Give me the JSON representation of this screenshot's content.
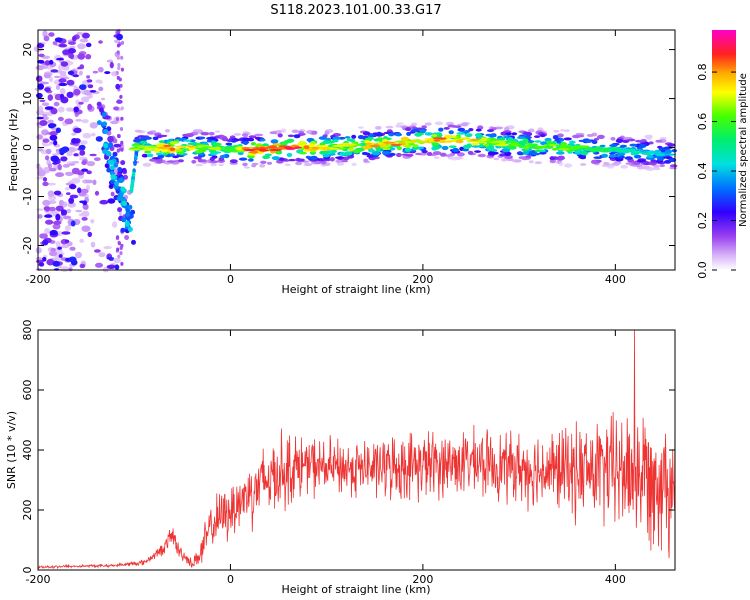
{
  "title": "S118.2023.101.00.33.G17",
  "chart_data": [
    {
      "type": "heatmap",
      "name": "spectrogram",
      "xlabel": "Height of straight line (km)",
      "ylabel": "Frequency (Hz)",
      "xlim": [
        -200,
        462
      ],
      "ylim": [
        -25,
        24
      ],
      "xticks": [
        -200,
        0,
        200,
        400
      ],
      "yticks": [
        -20,
        -10,
        0,
        10,
        20
      ],
      "colorbar": {
        "label": "Normalized spectral amplitude",
        "range": [
          0,
          0.97
        ],
        "ticks": [
          0.0,
          0.2,
          0.4,
          0.6,
          0.8
        ],
        "tick_labels": [
          "0.0",
          "0.2",
          "0.4",
          "0.6",
          "0.8"
        ]
      },
      "ridge": {
        "x": [
          -100,
          -60,
          -20,
          0,
          20,
          60,
          100,
          150,
          200,
          250,
          300,
          350,
          400,
          462
        ],
        "freq": [
          0,
          0,
          0,
          -0.5,
          -0.5,
          0,
          0,
          0.5,
          1.5,
          1.5,
          0.5,
          0,
          -0.5,
          -1.5
        ],
        "peak_amplitude": [
          0.7,
          0.9,
          0.75,
          0.6,
          0.95,
          0.97,
          0.8,
          0.85,
          0.9,
          0.85,
          0.7,
          0.7,
          0.55,
          0.45
        ]
      },
      "descending_branch": {
        "x": [
          -135,
          -125,
          -118,
          -112,
          -108,
          -104
        ],
        "freq": [
          6,
          -2,
          -6,
          -10,
          -14,
          -17
        ]
      },
      "noise_region_x": [
        -200,
        -115
      ]
    },
    {
      "type": "line",
      "name": "snr",
      "xlabel": "Height of straight line (km)",
      "ylabel": "SNR (10 * v/v)",
      "xlim": [
        -200,
        462
      ],
      "ylim": [
        0,
        800
      ],
      "xticks": [
        -200,
        0,
        200,
        400
      ],
      "yticks": [
        0,
        200,
        400,
        600,
        800
      ],
      "color": "#ee3333",
      "envelope": {
        "x": [
          -200,
          -120,
          -90,
          -70,
          -60,
          -55,
          -40,
          -30,
          -20,
          0,
          20,
          50,
          80,
          100,
          150,
          200,
          250,
          300,
          350,
          400,
          430,
          462
        ],
        "mean": [
          10,
          15,
          25,
          70,
          120,
          70,
          20,
          60,
          150,
          200,
          260,
          330,
          350,
          340,
          340,
          350,
          360,
          340,
          330,
          330,
          320,
          300
        ],
        "spread": [
          5,
          5,
          10,
          20,
          40,
          30,
          15,
          60,
          80,
          100,
          120,
          140,
          100,
          100,
          100,
          120,
          110,
          120,
          150,
          200,
          230,
          250
        ]
      },
      "peak": {
        "x": 420,
        "y": 800
      }
    }
  ]
}
